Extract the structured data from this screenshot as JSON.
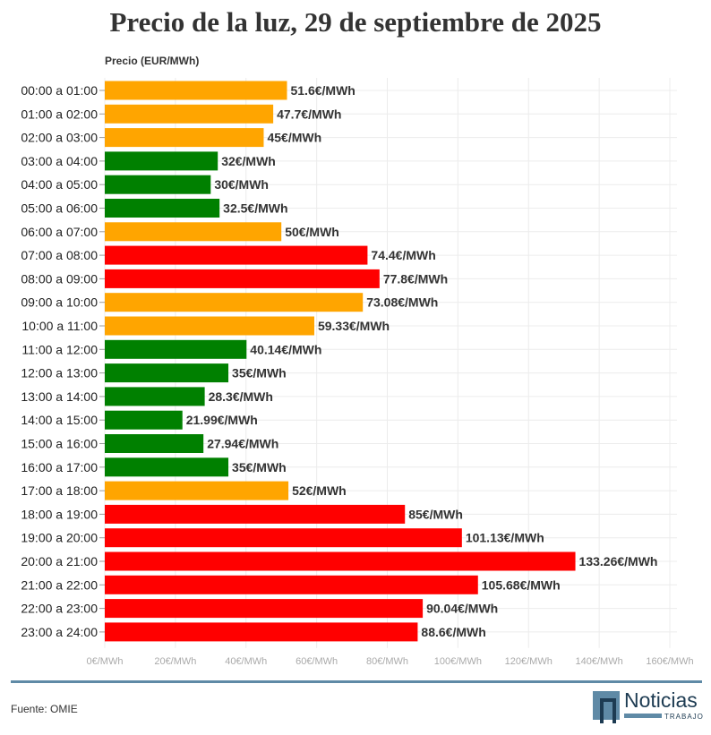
{
  "chart_data": {
    "type": "bar",
    "orientation": "horizontal",
    "title": "Precio de la luz, 29 de septiembre de 2025",
    "ylabel": "Precio (EUR/MWh)",
    "xlim": [
      0,
      160
    ],
    "xticks": [
      "0€/MWh",
      "20€/MWh",
      "40€/MWh",
      "60€/MWh",
      "80€/MWh",
      "100€/MWh",
      "120€/MWh",
      "140€/MWh",
      "160€/MWh"
    ],
    "grid": true,
    "categories": [
      "00:00 a 01:00",
      "01:00 a 02:00",
      "02:00 a 03:00",
      "03:00 a 04:00",
      "04:00 a 05:00",
      "05:00 a 06:00",
      "06:00 a 07:00",
      "07:00 a 08:00",
      "08:00 a 09:00",
      "09:00 a 10:00",
      "10:00 a 11:00",
      "11:00 a 12:00",
      "12:00 a 13:00",
      "13:00 a 14:00",
      "14:00 a 15:00",
      "15:00 a 16:00",
      "16:00 a 17:00",
      "17:00 a 18:00",
      "18:00 a 19:00",
      "19:00 a 20:00",
      "20:00 a 21:00",
      "21:00 a 22:00",
      "22:00 a 23:00",
      "23:00 a 24:00"
    ],
    "values": [
      51.6,
      47.7,
      45,
      32,
      30,
      32.5,
      50,
      74.4,
      77.8,
      73.08,
      59.33,
      40.14,
      35,
      28.3,
      21.99,
      27.94,
      35,
      52,
      85,
      101.13,
      133.26,
      105.68,
      90.04,
      88.6
    ],
    "labels": [
      "51.6€/MWh",
      "47.7€/MWh",
      "45€/MWh",
      "32€/MWh",
      "30€/MWh",
      "32.5€/MWh",
      "50€/MWh",
      "74.4€/MWh",
      "77.8€/MWh",
      "73.08€/MWh",
      "59.33€/MWh",
      "40.14€/MWh",
      "35€/MWh",
      "28.3€/MWh",
      "21.99€/MWh",
      "27.94€/MWh",
      "35€/MWh",
      "52€/MWh",
      "85€/MWh",
      "101.13€/MWh",
      "133.26€/MWh",
      "105.68€/MWh",
      "90.04€/MWh",
      "88.6€/MWh"
    ],
    "colors_by_level": {
      "low": "#008000",
      "medium": "#ffa500",
      "high": "#ff0000"
    },
    "levels": [
      "medium",
      "medium",
      "medium",
      "low",
      "low",
      "low",
      "medium",
      "high",
      "high",
      "medium",
      "medium",
      "low",
      "low",
      "low",
      "low",
      "low",
      "low",
      "medium",
      "high",
      "high",
      "high",
      "high",
      "high",
      "high"
    ]
  },
  "footer": {
    "source": "Fuente: OMIE",
    "logo_text": "Noticias",
    "logo_sub": "TRABAJO"
  }
}
